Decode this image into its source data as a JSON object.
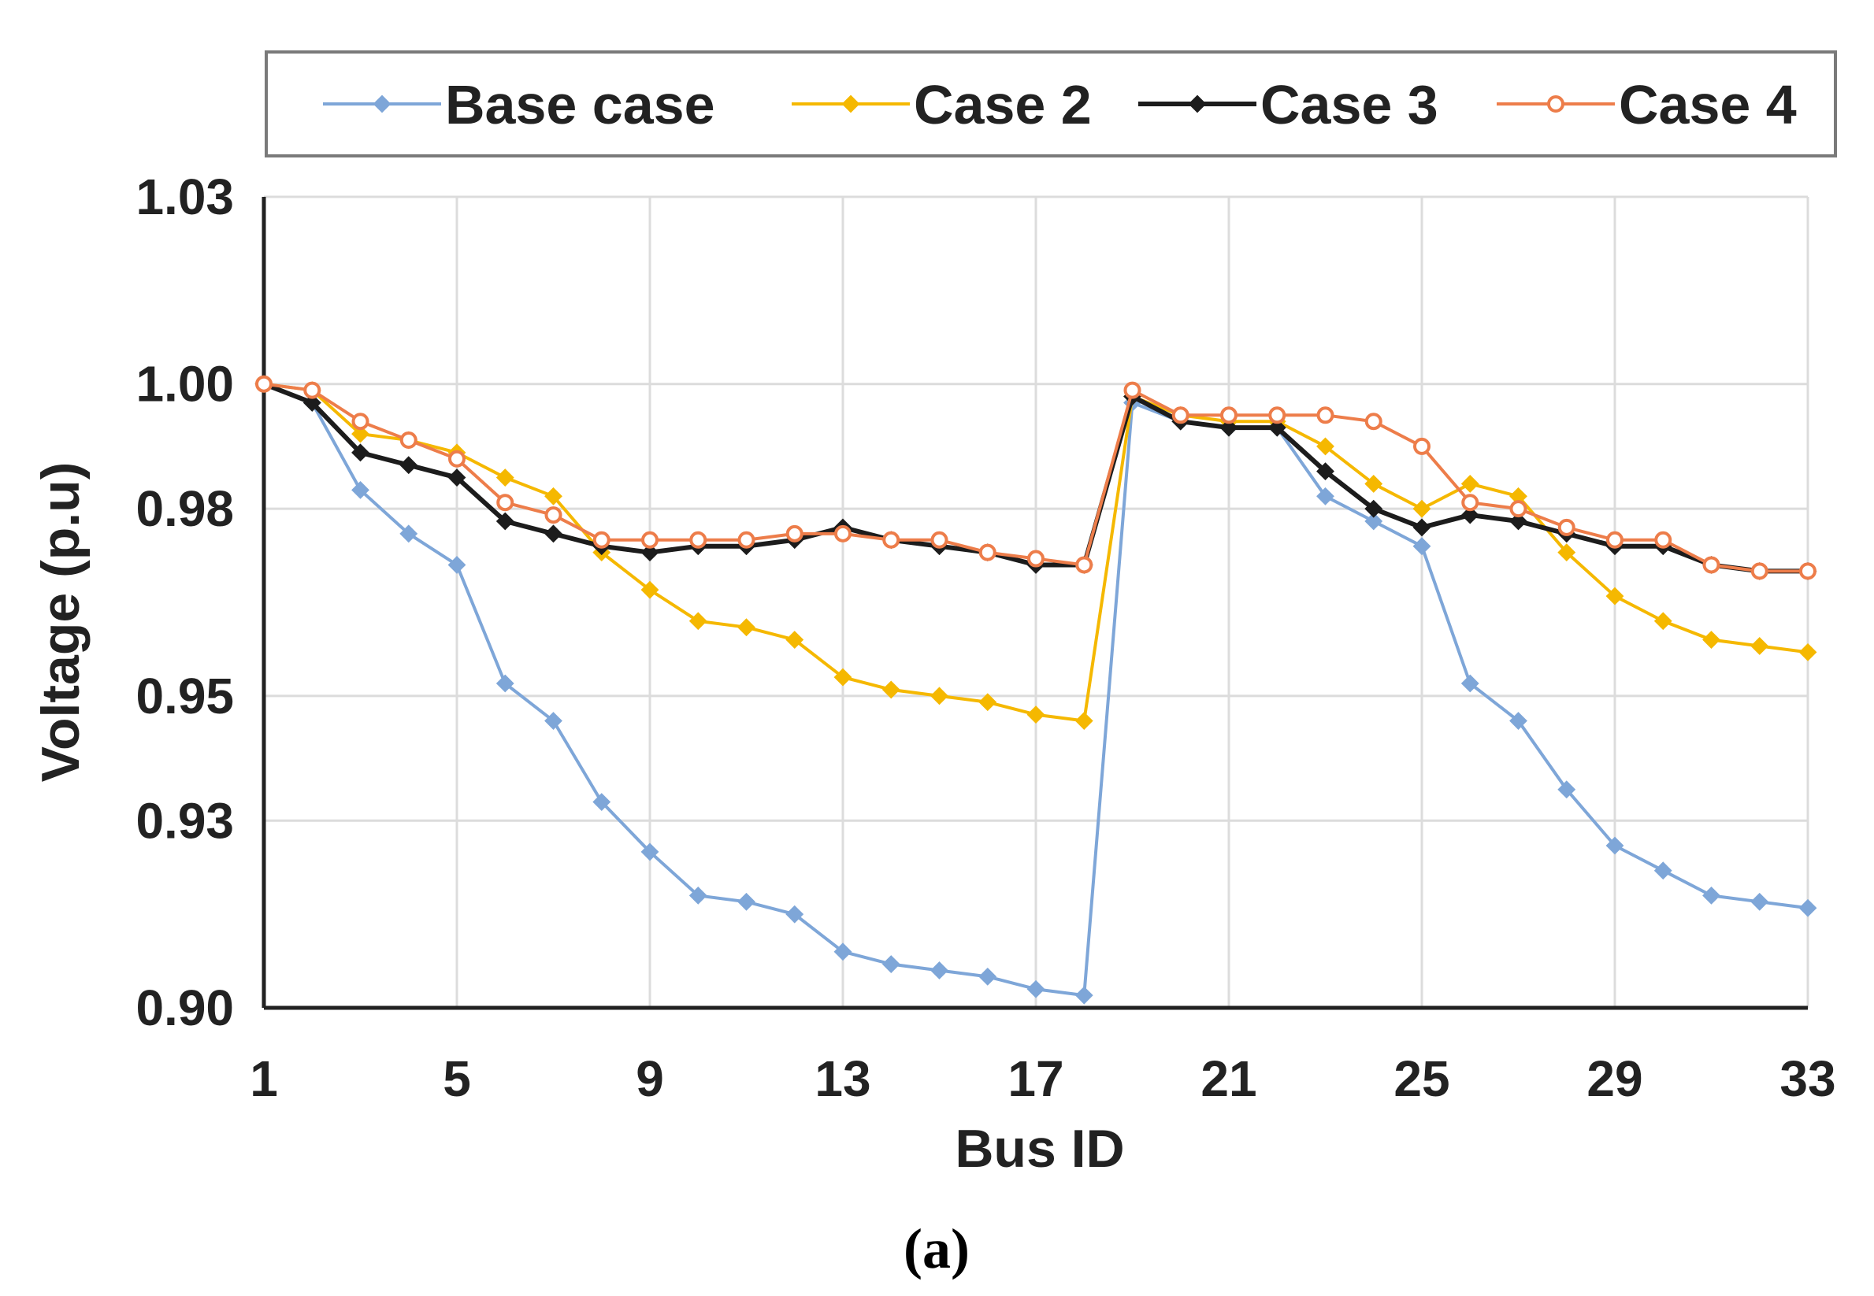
{
  "chart_data": {
    "type": "line",
    "caption": "(a)",
    "xlabel": "Bus ID",
    "ylabel": "Voltage (p.u)",
    "x": [
      1,
      2,
      3,
      4,
      5,
      6,
      7,
      8,
      9,
      10,
      11,
      12,
      13,
      14,
      15,
      16,
      17,
      18,
      19,
      20,
      21,
      22,
      23,
      24,
      25,
      26,
      27,
      28,
      29,
      30,
      31,
      32,
      33
    ],
    "xticks": [
      1,
      5,
      9,
      13,
      17,
      21,
      25,
      29,
      33
    ],
    "xtick_labels": [
      "1",
      "5",
      "9",
      "13",
      "17",
      "21",
      "25",
      "29",
      "33"
    ],
    "ylim": [
      0.9,
      1.03
    ],
    "yticks": [
      0.9,
      0.93,
      0.95,
      0.98,
      1.0,
      1.03
    ],
    "ytick_labels": [
      "0.90",
      "0.93",
      "0.95",
      "0.98",
      "1.00",
      "1.03"
    ],
    "grid": true,
    "legend_position": "top",
    "series": [
      {
        "name": "Base case",
        "color": "#7ea6d8",
        "marker": "diamond",
        "values": [
          1.0,
          0.997,
          0.983,
          0.976,
          0.971,
          0.952,
          0.946,
          0.933,
          0.925,
          0.918,
          0.917,
          0.915,
          0.909,
          0.907,
          0.906,
          0.905,
          0.903,
          0.902,
          0.997,
          0.994,
          0.993,
          0.993,
          0.982,
          0.978,
          0.974,
          0.952,
          0.946,
          0.935,
          0.926,
          0.922,
          0.918,
          0.917,
          0.916
        ]
      },
      {
        "name": "Case 2",
        "color": "#f5b800",
        "marker": "diamond",
        "values": [
          1.0,
          0.999,
          0.992,
          0.991,
          0.989,
          0.985,
          0.982,
          0.973,
          0.967,
          0.962,
          0.961,
          0.959,
          0.953,
          0.951,
          0.95,
          0.949,
          0.947,
          0.946,
          0.998,
          0.995,
          0.994,
          0.994,
          0.99,
          0.984,
          0.98,
          0.984,
          0.982,
          0.973,
          0.966,
          0.962,
          0.959,
          0.958,
          0.957
        ]
      },
      {
        "name": "Case 3",
        "color": "#1c1c1c",
        "marker": "diamond",
        "values": [
          1.0,
          0.997,
          0.989,
          0.987,
          0.985,
          0.978,
          0.976,
          0.974,
          0.973,
          0.974,
          0.974,
          0.975,
          0.977,
          0.975,
          0.974,
          0.973,
          0.971,
          0.971,
          0.998,
          0.994,
          0.993,
          0.993,
          0.986,
          0.98,
          0.977,
          0.979,
          0.978,
          0.976,
          0.974,
          0.974,
          0.971,
          0.97,
          0.97
        ]
      },
      {
        "name": "Case 4",
        "color": "#ed7d4a",
        "marker": "circle-open",
        "values": [
          1.0,
          0.999,
          0.994,
          0.991,
          0.988,
          0.981,
          0.979,
          0.975,
          0.975,
          0.975,
          0.975,
          0.976,
          0.976,
          0.975,
          0.975,
          0.973,
          0.972,
          0.971,
          0.999,
          0.995,
          0.995,
          0.995,
          0.995,
          0.994,
          0.99,
          0.981,
          0.98,
          0.977,
          0.975,
          0.975,
          0.971,
          0.97,
          0.97
        ]
      }
    ]
  }
}
